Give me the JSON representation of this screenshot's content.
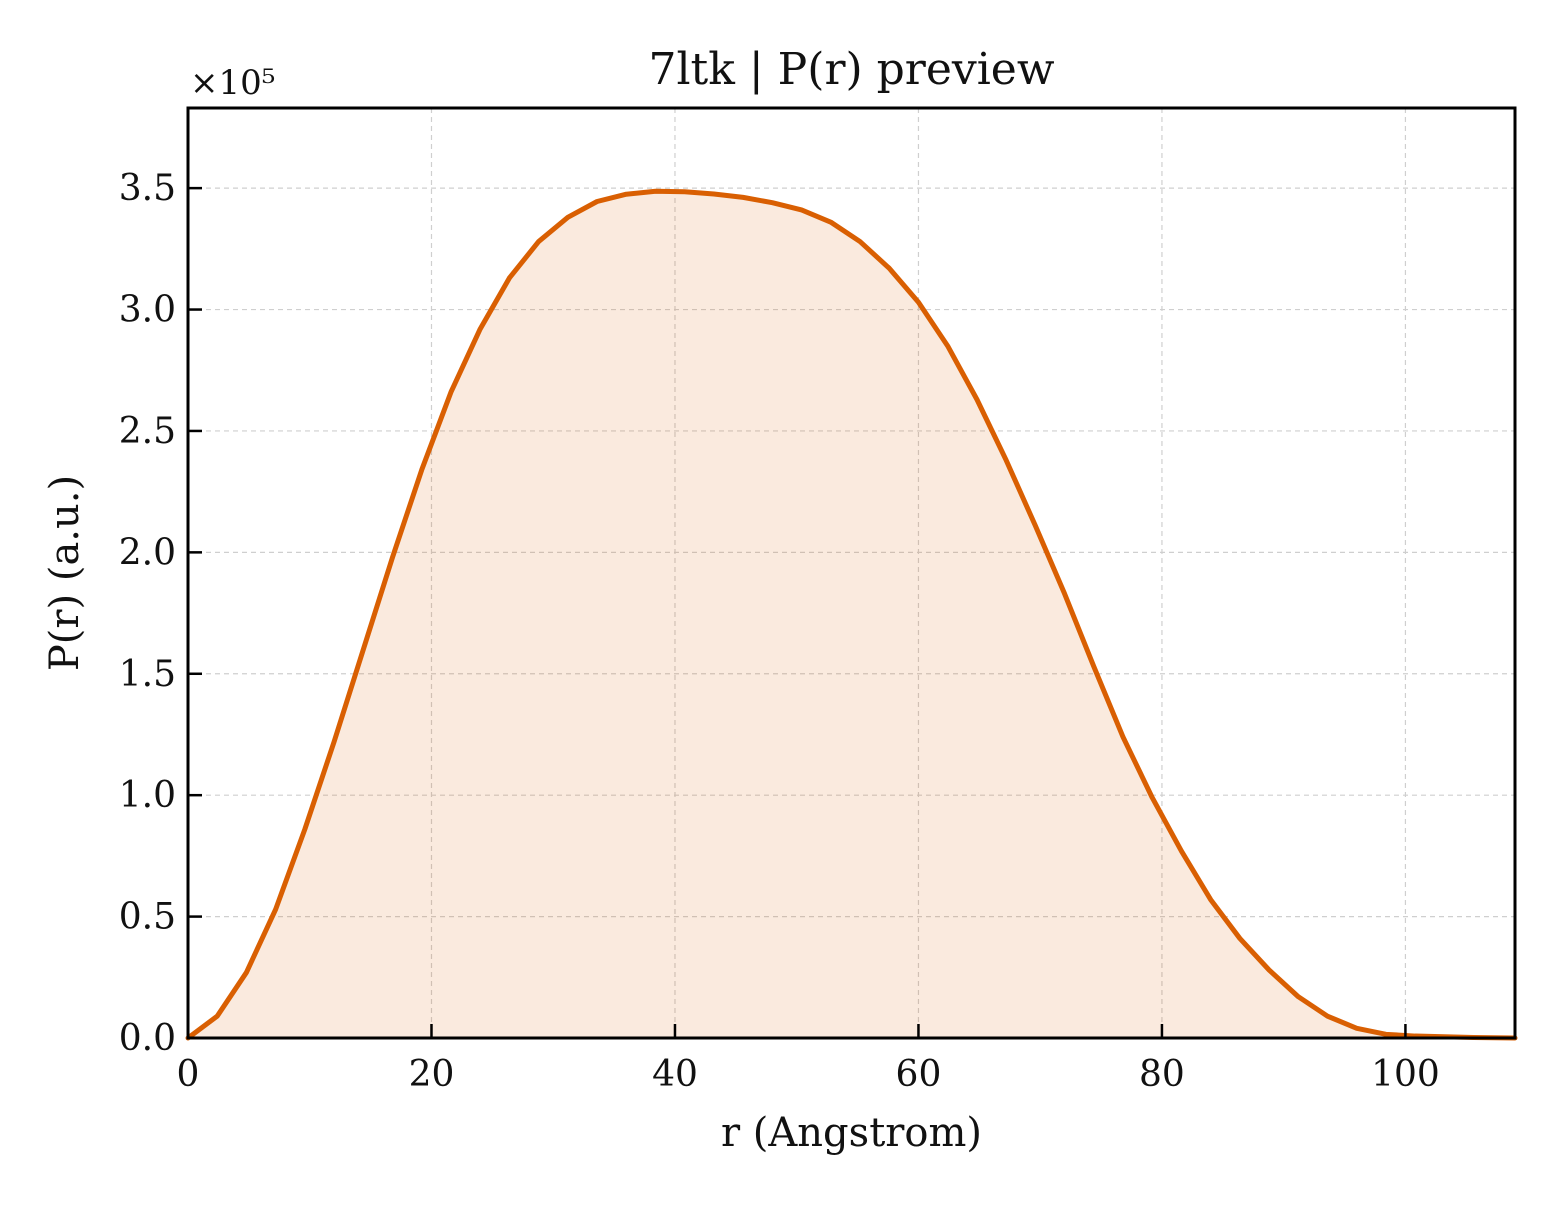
{
  "chart_data": {
    "type": "area",
    "title": "7ltk | P(r) preview",
    "xlabel": "r (Angstrom)",
    "ylabel": "P(r) (a.u.)",
    "y_multiplier_label": "×10⁵",
    "y_scale_factor": 100000,
    "xlim": [
      0,
      109
    ],
    "ylim": [
      0,
      3.83
    ],
    "x_ticks": [
      0,
      20,
      40,
      60,
      80,
      100
    ],
    "y_ticks": [
      0.0,
      0.5,
      1.0,
      1.5,
      2.0,
      2.5,
      3.0,
      3.5
    ],
    "grid": true,
    "series": [
      {
        "color": "#d95f02",
        "fill_color": "#d95f02",
        "x": [
          0,
          2.4,
          4.8,
          7.2,
          9.6,
          12.0,
          14.4,
          16.8,
          19.2,
          21.6,
          24.0,
          26.4,
          28.8,
          31.2,
          33.6,
          36.0,
          38.4,
          40.8,
          43.2,
          45.6,
          48.0,
          50.4,
          52.8,
          55.2,
          57.6,
          60.0,
          62.4,
          64.8,
          67.2,
          69.6,
          72.0,
          74.4,
          76.8,
          79.2,
          81.6,
          84.0,
          86.4,
          88.8,
          91.2,
          93.6,
          96.0,
          98.4,
          100.8,
          103.2,
          105.6,
          109.0
        ],
        "y": [
          0.0,
          0.09,
          0.27,
          0.53,
          0.86,
          1.22,
          1.6,
          1.98,
          2.34,
          2.66,
          2.92,
          3.13,
          3.28,
          3.38,
          3.445,
          3.475,
          3.487,
          3.485,
          3.476,
          3.462,
          3.44,
          3.41,
          3.36,
          3.28,
          3.17,
          3.03,
          2.85,
          2.63,
          2.38,
          2.11,
          1.83,
          1.53,
          1.24,
          0.99,
          0.77,
          0.57,
          0.41,
          0.28,
          0.17,
          0.09,
          0.04,
          0.015,
          0.008,
          0.005,
          0.002,
          0.0
        ]
      }
    ]
  }
}
